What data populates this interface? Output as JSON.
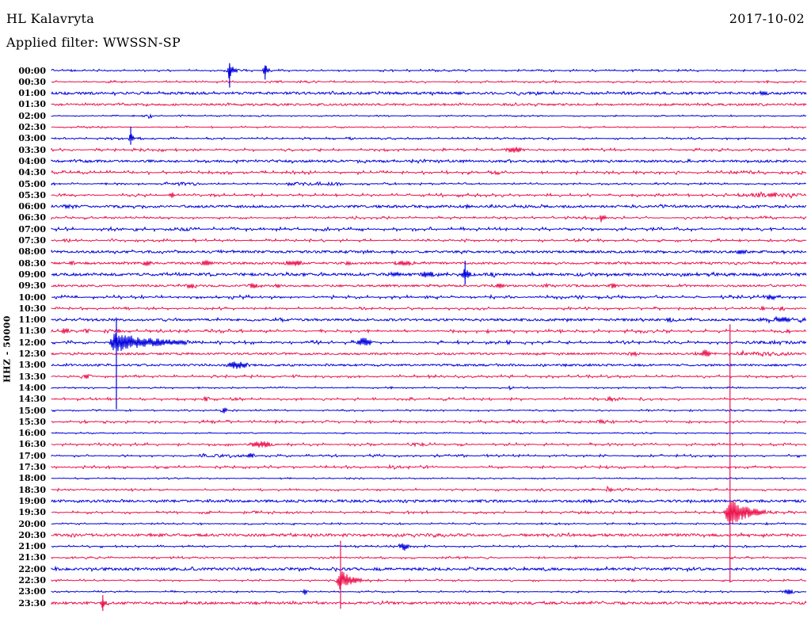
{
  "header": {
    "station": "HL Kalavryta",
    "date": "2017-10-02",
    "filter_label": "Applied filter: WWSSN-SP"
  },
  "axis": {
    "channel_label": "HHZ - 50000"
  },
  "colors": {
    "trace_blue": "#0000dd",
    "trace_red": "#ec124e",
    "background": "#ffffff",
    "text": "#000000"
  },
  "chart_data": {
    "type": "line",
    "title": "HL Kalavryta",
    "subtitle": "Applied filter: WWSSN-SP",
    "date": "2017-10-02",
    "ylabel": "HHZ - 50000",
    "row_interval_minutes": 30,
    "legend": "pos = fraction of 30-minute row; amp = trace amplitude in px; w = spindle half-width; rise/decay = asymmetric event envelope",
    "rows": [
      {
        "label": "00:00",
        "color": "blue",
        "noise": 0.7,
        "segments": [],
        "events": [
          {
            "pos": 0.236,
            "amp": 11,
            "rise": 3,
            "decay": 7
          },
          {
            "pos": 0.283,
            "amp": 8,
            "rise": 2.5,
            "decay": 5
          }
        ]
      },
      {
        "label": "00:30",
        "color": "red",
        "noise": 0.7,
        "segments": [
          {
            "from": 0.281,
            "to": 0.305,
            "amp": 1.6
          }
        ],
        "events": []
      },
      {
        "label": "01:00",
        "color": "blue",
        "noise": 1.5,
        "segments": [],
        "events": [
          {
            "pos": 0.944,
            "amp": 3,
            "w": 8
          }
        ]
      },
      {
        "label": "01:30",
        "color": "red",
        "noise": 1.2,
        "segments": [],
        "events": []
      },
      {
        "label": "02:00",
        "color": "blue",
        "noise": 0.5,
        "segments": [],
        "events": [
          {
            "pos": 0.131,
            "amp": 3,
            "w": 2
          }
        ]
      },
      {
        "label": "02:30",
        "color": "red",
        "noise": 0.6,
        "segments": [],
        "events": []
      },
      {
        "label": "03:00",
        "color": "blue",
        "noise": 0.7,
        "segments": [],
        "events": [
          {
            "pos": 0.105,
            "amp": 7,
            "rise": 2,
            "decay": 5
          }
        ]
      },
      {
        "label": "03:30",
        "color": "red",
        "noise": 0.9,
        "segments": [],
        "events": [
          {
            "pos": 0.614,
            "amp": 4,
            "w": 9
          }
        ]
      },
      {
        "label": "04:00",
        "color": "blue",
        "noise": 1.4,
        "segments": [],
        "events": []
      },
      {
        "label": "04:30",
        "color": "red",
        "noise": 1.1,
        "segments": [],
        "events": [
          {
            "pos": 0.829,
            "amp": 2.5,
            "w": 4
          }
        ]
      },
      {
        "label": "05:00",
        "color": "blue",
        "noise": 0.7,
        "segments": [
          {
            "from": 0.163,
            "to": 0.195,
            "amp": 2.2
          },
          {
            "from": 0.313,
            "to": 0.384,
            "amp": 2.2
          }
        ],
        "events": [
          {
            "pos": 0.152,
            "amp": 2.5,
            "w": 2
          }
        ]
      },
      {
        "label": "05:30",
        "color": "red",
        "noise": 1.0,
        "segments": [
          {
            "from": 0.908,
            "to": 0.993,
            "amp": 2.2
          }
        ],
        "events": [
          {
            "pos": 0.16,
            "amp": 3.5,
            "w": 3
          },
          {
            "pos": 0.955,
            "amp": 4,
            "w": 6
          }
        ]
      },
      {
        "label": "06:00",
        "color": "blue",
        "noise": 1.5,
        "segments": [],
        "events": [
          {
            "pos": 0.021,
            "amp": 3,
            "w": 6
          },
          {
            "pos": 0.551,
            "amp": 3,
            "w": 2
          }
        ]
      },
      {
        "label": "06:30",
        "color": "red",
        "noise": 0.9,
        "segments": [],
        "events": [
          {
            "pos": 0.729,
            "amp": 6.5,
            "rise": 3,
            "decay": 5
          }
        ]
      },
      {
        "label": "07:00",
        "color": "blue",
        "noise": 1.1,
        "segments": [
          {
            "from": 0.155,
            "to": 0.184,
            "amp": 2.2
          }
        ],
        "events": []
      },
      {
        "label": "07:30",
        "color": "red",
        "noise": 0.9,
        "segments": [],
        "events": [
          {
            "pos": 0.021,
            "amp": 2.5,
            "w": 5
          },
          {
            "pos": 0.082,
            "amp": 2.5,
            "w": 4
          }
        ]
      },
      {
        "label": "08:00",
        "color": "blue",
        "noise": 1.4,
        "segments": [],
        "events": [
          {
            "pos": 0.913,
            "amp": 3,
            "w": 8
          }
        ]
      },
      {
        "label": "08:30",
        "color": "red",
        "noise": 1.3,
        "segments": [],
        "events": [
          {
            "pos": 0.026,
            "amp": 3,
            "w": 4
          },
          {
            "pos": 0.126,
            "amp": 3.5,
            "w": 4
          },
          {
            "pos": 0.207,
            "amp": 4,
            "w": 7
          },
          {
            "pos": 0.32,
            "amp": 4.5,
            "w": 9
          },
          {
            "pos": 0.393,
            "amp": 3.5,
            "w": 4
          },
          {
            "pos": 0.467,
            "amp": 3,
            "w": 13
          }
        ]
      },
      {
        "label": "09:00",
        "color": "blue",
        "noise": 1.6,
        "segments": [],
        "events": [
          {
            "pos": 0.456,
            "amp": 3.5,
            "w": 8
          },
          {
            "pos": 0.498,
            "amp": 4,
            "w": 8
          },
          {
            "pos": 0.548,
            "amp": 10,
            "rise": 4,
            "decay": 6
          },
          {
            "pos": 0.583,
            "amp": 3,
            "w": 4
          }
        ]
      },
      {
        "label": "09:30",
        "color": "red",
        "noise": 1.2,
        "segments": [],
        "events": [
          {
            "pos": 0.184,
            "amp": 4,
            "w": 5
          },
          {
            "pos": 0.267,
            "amp": 3.5,
            "w": 5
          },
          {
            "pos": 0.299,
            "amp": 3,
            "w": 4
          },
          {
            "pos": 0.593,
            "amp": 3.5,
            "w": 5
          },
          {
            "pos": 0.656,
            "amp": 3,
            "w": 4
          },
          {
            "pos": 0.745,
            "amp": 4,
            "w": 4
          }
        ]
      },
      {
        "label": "10:00",
        "color": "blue",
        "noise": 1.1,
        "segments": [],
        "events": [
          {
            "pos": 0.953,
            "amp": 3.5,
            "w": 6
          }
        ]
      },
      {
        "label": "10:30",
        "color": "red",
        "noise": 0.9,
        "segments": [],
        "events": [
          {
            "pos": 0.942,
            "amp": 3,
            "w": 4
          },
          {
            "pos": 0.968,
            "amp": 3,
            "w": 4
          }
        ]
      },
      {
        "label": "11:00",
        "color": "blue",
        "noise": 1.4,
        "segments": [
          {
            "from": 0.934,
            "to": 0.999,
            "amp": 2.5
          }
        ],
        "events": [
          {
            "pos": 0.818,
            "amp": 3,
            "w": 5
          },
          {
            "pos": 0.97,
            "amp": 4,
            "w": 8
          }
        ]
      },
      {
        "label": "11:30",
        "color": "red",
        "noise": 1.1,
        "segments": [],
        "events": [
          {
            "pos": 0.016,
            "amp": 6.5,
            "rise": 2,
            "decay": 8
          },
          {
            "pos": 0.047,
            "amp": 3,
            "w": 4
          },
          {
            "pos": 0.089,
            "amp": 3,
            "w": 4
          }
        ]
      },
      {
        "label": "12:00",
        "color": "blue",
        "noise": 1.1,
        "segments": [
          {
            "from": 0.918,
            "to": 0.999,
            "amp": 1.8
          }
        ],
        "events": [
          {
            "pos": 0.084,
            "amp": 13,
            "rise": 5,
            "decay": 55
          },
          {
            "pos": 0.414,
            "amp": 6,
            "w": 7
          },
          {
            "pos": 0.76,
            "amp": 2.5,
            "w": 5
          }
        ]
      },
      {
        "label": "12:30",
        "color": "red",
        "noise": 1.2,
        "segments": [
          {
            "from": 0.908,
            "to": 0.981,
            "amp": 2.2
          }
        ],
        "events": [
          {
            "pos": 0.771,
            "amp": 3,
            "w": 7
          },
          {
            "pos": 0.866,
            "amp": 5.5,
            "rise": 5,
            "decay": 10
          }
        ]
      },
      {
        "label": "13:00",
        "color": "blue",
        "noise": 1.2,
        "segments": [],
        "events": [
          {
            "pos": 0.246,
            "amp": 5,
            "w": 11
          }
        ]
      },
      {
        "label": "13:30",
        "color": "red",
        "noise": 0.9,
        "segments": [],
        "events": [
          {
            "pos": 0.047,
            "amp": 3,
            "w": 5
          }
        ]
      },
      {
        "label": "14:00",
        "color": "blue",
        "noise": 0.6,
        "segments": [],
        "events": [
          {
            "pos": 0.608,
            "amp": 2.5,
            "w": 2
          }
        ]
      },
      {
        "label": "14:30",
        "color": "red",
        "noise": 0.9,
        "segments": [],
        "events": [
          {
            "pos": 0.205,
            "amp": 3,
            "w": 4
          },
          {
            "pos": 0.74,
            "amp": 3.5,
            "w": 4
          }
        ]
      },
      {
        "label": "15:00",
        "color": "blue",
        "noise": 0.6,
        "segments": [],
        "events": [
          {
            "pos": 0.229,
            "amp": 5,
            "w": 2.5
          }
        ]
      },
      {
        "label": "15:30",
        "color": "red",
        "noise": 0.9,
        "segments": [],
        "events": [
          {
            "pos": 0.729,
            "amp": 3,
            "w": 5
          }
        ]
      },
      {
        "label": "16:00",
        "color": "blue",
        "noise": 0.5,
        "segments": [],
        "events": []
      },
      {
        "label": "16:30",
        "color": "red",
        "noise": 0.9,
        "segments": [],
        "events": [
          {
            "pos": 0.278,
            "amp": 4,
            "w": 12
          },
          {
            "pos": 0.487,
            "amp": 2.5,
            "w": 10
          }
        ]
      },
      {
        "label": "17:00",
        "color": "blue",
        "noise": 0.8,
        "segments": [
          {
            "from": 0.194,
            "to": 0.273,
            "amp": 1.8
          }
        ],
        "events": [
          {
            "pos": 0.264,
            "amp": 3.5,
            "w": 4
          }
        ]
      },
      {
        "label": "17:30",
        "color": "red",
        "noise": 0.9,
        "segments": [],
        "events": [
          {
            "pos": 0.451,
            "amp": 2.5,
            "w": 7
          }
        ]
      },
      {
        "label": "18:00",
        "color": "blue",
        "noise": 0.5,
        "segments": [],
        "events": []
      },
      {
        "label": "18:30",
        "color": "red",
        "noise": 0.8,
        "segments": [],
        "events": [
          {
            "pos": 0.74,
            "amp": 3,
            "w": 5
          }
        ]
      },
      {
        "label": "19:00",
        "color": "blue",
        "noise": 1.5,
        "segments": [],
        "events": []
      },
      {
        "label": "19:30",
        "color": "red",
        "noise": 0.9,
        "segments": [],
        "events": [
          {
            "pos": 0.27,
            "amp": 2,
            "w": 4
          },
          {
            "pos": 0.899,
            "amp": 20,
            "rise": 5,
            "decay": 22
          }
        ]
      },
      {
        "label": "20:00",
        "color": "blue",
        "noise": 0.6,
        "segments": [],
        "events": [
          {
            "pos": 0.283,
            "amp": 2,
            "w": 2
          },
          {
            "pos": 0.32,
            "amp": 2,
            "w": 2
          },
          {
            "pos": 0.383,
            "amp": 1.8,
            "w": 2
          }
        ]
      },
      {
        "label": "20:30",
        "color": "red",
        "noise": 1.6,
        "segments": [],
        "events": []
      },
      {
        "label": "21:00",
        "color": "blue",
        "noise": 0.7,
        "segments": [],
        "events": [
          {
            "pos": 0.467,
            "amp": 5.5,
            "w": 5
          }
        ]
      },
      {
        "label": "21:30",
        "color": "red",
        "noise": 0.7,
        "segments": [],
        "events": [
          {
            "pos": 0.404,
            "amp": 1.5,
            "w": 2
          }
        ]
      },
      {
        "label": "22:00",
        "color": "blue",
        "noise": 1.6,
        "segments": [],
        "events": []
      },
      {
        "label": "22:30",
        "color": "red",
        "noise": 0.7,
        "segments": [],
        "events": [
          {
            "pos": 0.383,
            "amp": 14,
            "rise": 4,
            "decay": 14
          }
        ]
      },
      {
        "label": "23:00",
        "color": "blue",
        "noise": 0.6,
        "segments": [],
        "events": [
          {
            "pos": 0.336,
            "amp": 4,
            "w": 3
          },
          {
            "pos": 0.976,
            "amp": 3.5,
            "w": 6
          }
        ]
      },
      {
        "label": "23:30",
        "color": "red",
        "noise": 1.5,
        "segments": [],
        "events": [
          {
            "pos": 0.068,
            "amp": 8,
            "rise": 3,
            "decay": 5
          }
        ]
      }
    ],
    "spikes": [
      {
        "color": "blue",
        "pos": 0.236,
        "rowFrom": -0.65,
        "rowTo": 1.5
      },
      {
        "color": "blue",
        "pos": 0.283,
        "rowFrom": -0.45,
        "rowTo": 0.8
      },
      {
        "color": "blue",
        "pos": 0.105,
        "rowFrom": 4.95,
        "rowTo": 6.55
      },
      {
        "color": "blue",
        "pos": 0.548,
        "rowFrom": 16.8,
        "rowTo": 18.9
      },
      {
        "color": "blue",
        "pos": 0.086,
        "rowFrom": 21.8,
        "rowTo": 29.9
      },
      {
        "color": "red",
        "pos": 0.899,
        "rowFrom": 22.4,
        "rowTo": 45.2
      },
      {
        "color": "red",
        "pos": 0.383,
        "rowFrom": 41.5,
        "rowTo": 47.5
      },
      {
        "color": "red",
        "pos": 0.068,
        "rowFrom": 46.3,
        "rowTo": 47.7
      }
    ]
  }
}
